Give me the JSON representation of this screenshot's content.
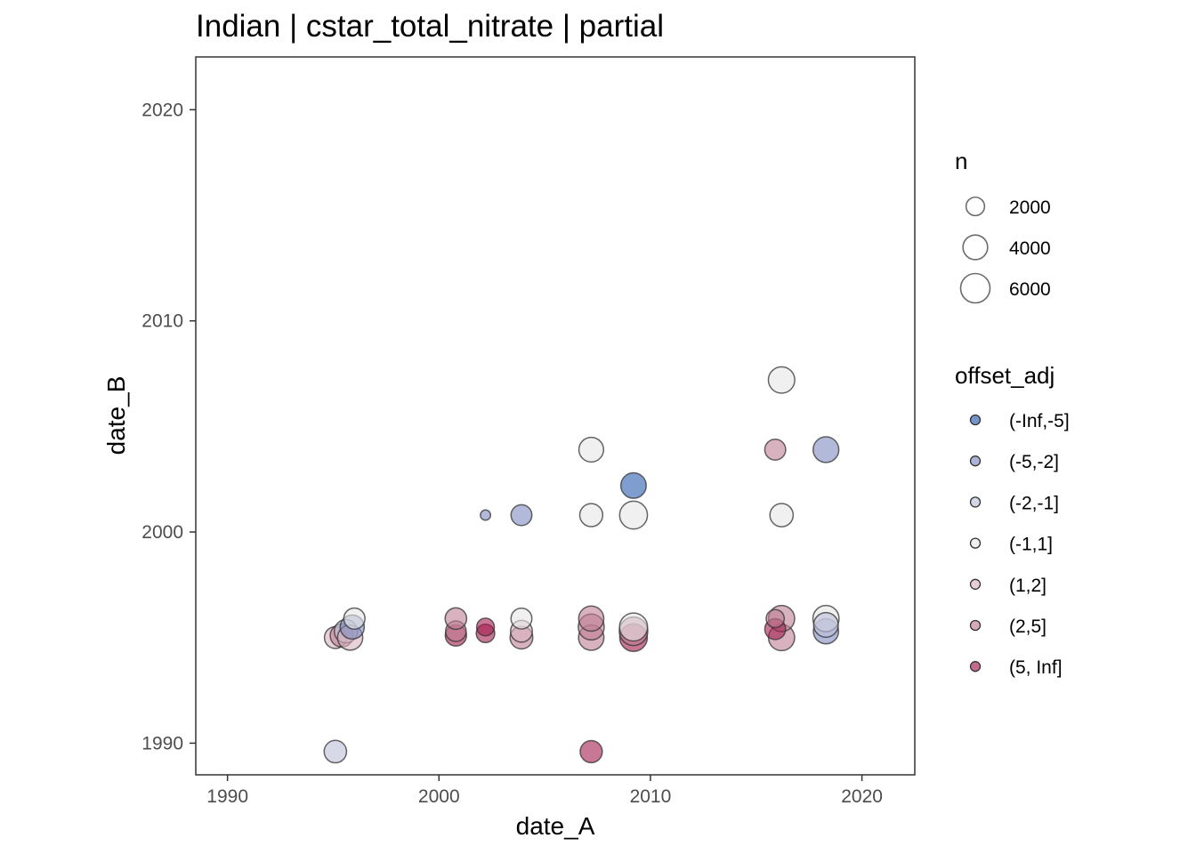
{
  "chart_data": {
    "type": "scatter",
    "title": "Indian | cstar_total_nitrate | partial",
    "xlabel": "date_A",
    "ylabel": "date_B",
    "xlim": [
      1988.5,
      2022.5
    ],
    "ylim": [
      1988.5,
      2022.5
    ],
    "xticks": [
      "1990",
      "2000",
      "2010",
      "2020"
    ],
    "yticks": [
      "1990",
      "2000",
      "2010",
      "2020"
    ],
    "grid": false,
    "size_legend": {
      "title": "n",
      "entries": [
        {
          "label": "2000",
          "value": 2000
        },
        {
          "label": "4000",
          "value": 4000
        },
        {
          "label": "6000",
          "value": 6000
        }
      ]
    },
    "color_legend": {
      "title": "offset_adj",
      "placement": "right",
      "entries": [
        {
          "label": "(-Inf,-5]",
          "color": "#2c5bb0"
        },
        {
          "label": "(-5,-2]",
          "color": "#7e8bc0"
        },
        {
          "label": "(-2,-1]",
          "color": "#bcc0d8"
        },
        {
          "label": "(-1,1]",
          "color": "#e6e6e6"
        },
        {
          "label": "(1,2]",
          "color": "#d8b4c0"
        },
        {
          "label": "(2,5]",
          "color": "#c07e94"
        },
        {
          "label": "(5, Inf]",
          "color": "#a31c4e"
        }
      ]
    },
    "points": [
      {
        "x": 1995.1,
        "y": 1989.6,
        "n": 3200,
        "group": 2
      },
      {
        "x": 1995.1,
        "y": 1995.0,
        "n": 3000,
        "group": 4
      },
      {
        "x": 1995.4,
        "y": 1995.1,
        "n": 3400,
        "group": 5
      },
      {
        "x": 1995.6,
        "y": 1995.3,
        "n": 3500,
        "group": 2
      },
      {
        "x": 1995.8,
        "y": 1995.0,
        "n": 4200,
        "group": 4
      },
      {
        "x": 1995.9,
        "y": 1995.5,
        "n": 3800,
        "group": 1
      },
      {
        "x": 1996.0,
        "y": 1995.9,
        "n": 2800,
        "group": 3
      },
      {
        "x": 2000.8,
        "y": 1995.1,
        "n": 2800,
        "group": 6
      },
      {
        "x": 2000.8,
        "y": 1995.3,
        "n": 2600,
        "group": 5
      },
      {
        "x": 2000.8,
        "y": 1995.9,
        "n": 2900,
        "group": 5
      },
      {
        "x": 2002.2,
        "y": 2000.8,
        "n": 400,
        "group": 1
      },
      {
        "x": 2002.2,
        "y": 1995.2,
        "n": 2000,
        "group": 6
      },
      {
        "x": 2002.2,
        "y": 1995.5,
        "n": 1800,
        "group": 6
      },
      {
        "x": 2003.9,
        "y": 2000.8,
        "n": 2700,
        "group": 1
      },
      {
        "x": 2003.9,
        "y": 1995.0,
        "n": 3300,
        "group": 5
      },
      {
        "x": 2003.9,
        "y": 1995.3,
        "n": 3000,
        "group": 4
      },
      {
        "x": 2003.9,
        "y": 1995.9,
        "n": 2700,
        "group": 3
      },
      {
        "x": 2007.2,
        "y": 2003.9,
        "n": 4000,
        "group": 3
      },
      {
        "x": 2007.2,
        "y": 2000.8,
        "n": 3400,
        "group": 3
      },
      {
        "x": 2007.2,
        "y": 1995.0,
        "n": 4300,
        "group": 5
      },
      {
        "x": 2007.2,
        "y": 1995.5,
        "n": 4500,
        "group": 5
      },
      {
        "x": 2007.2,
        "y": 1995.9,
        "n": 4200,
        "group": 5
      },
      {
        "x": 2007.2,
        "y": 1989.6,
        "n": 3100,
        "group": 6
      },
      {
        "x": 2009.2,
        "y": 2002.2,
        "n": 4300,
        "group": 0
      },
      {
        "x": 2009.2,
        "y": 2000.8,
        "n": 5300,
        "group": 3
      },
      {
        "x": 2009.2,
        "y": 1995.0,
        "n": 5200,
        "group": 6
      },
      {
        "x": 2009.2,
        "y": 1995.3,
        "n": 5600,
        "group": 5
      },
      {
        "x": 2009.2,
        "y": 1995.5,
        "n": 5400,
        "group": 3
      },
      {
        "x": 2016.2,
        "y": 2007.2,
        "n": 4700,
        "group": 3
      },
      {
        "x": 2016.2,
        "y": 2000.8,
        "n": 3500,
        "group": 3
      },
      {
        "x": 2015.9,
        "y": 2003.9,
        "n": 2700,
        "group": 5
      },
      {
        "x": 2016.2,
        "y": 1995.0,
        "n": 4600,
        "group": 5
      },
      {
        "x": 2016.2,
        "y": 1995.9,
        "n": 4600,
        "group": 5
      },
      {
        "x": 2015.9,
        "y": 1995.4,
        "n": 2700,
        "group": 6
      },
      {
        "x": 2015.9,
        "y": 1995.9,
        "n": 1900,
        "group": 5
      },
      {
        "x": 2018.3,
        "y": 2003.9,
        "n": 4400,
        "group": 1
      },
      {
        "x": 2018.3,
        "y": 1995.3,
        "n": 4200,
        "group": 1
      },
      {
        "x": 2018.3,
        "y": 1995.9,
        "n": 4600,
        "group": 3
      },
      {
        "x": 2018.3,
        "y": 1995.6,
        "n": 4000,
        "group": 2
      }
    ]
  }
}
